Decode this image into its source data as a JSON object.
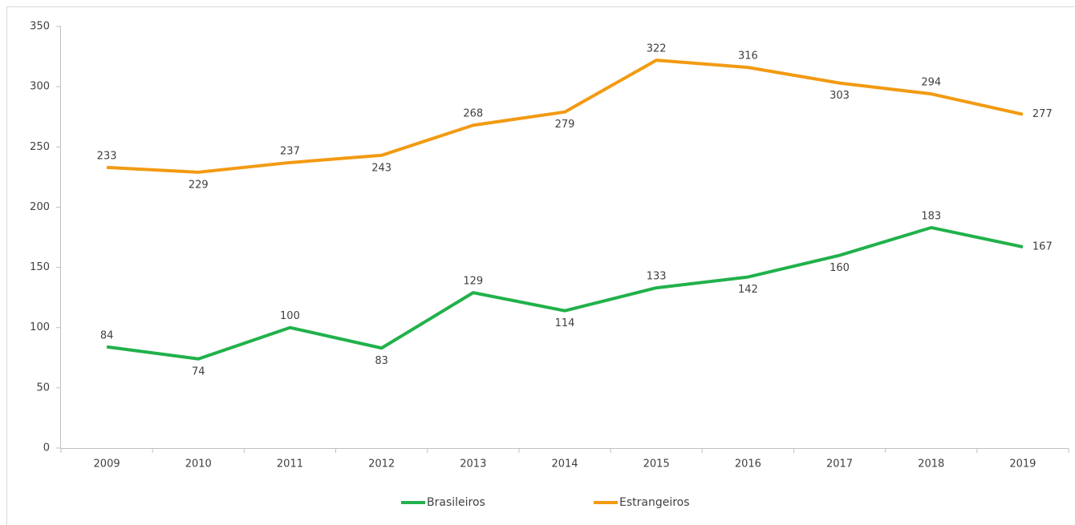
{
  "chart_data": {
    "type": "line",
    "categories": [
      "2009",
      "2010",
      "2011",
      "2012",
      "2013",
      "2014",
      "2015",
      "2016",
      "2017",
      "2018",
      "2019"
    ],
    "series": [
      {
        "name": "Brasileiros",
        "color": "#21b14b",
        "values": [
          84,
          74,
          100,
          83,
          129,
          114,
          133,
          142,
          160,
          183,
          167
        ]
      },
      {
        "name": "Estrangeiros",
        "color": "#f29a12",
        "values": [
          233,
          229,
          237,
          243,
          268,
          279,
          322,
          316,
          303,
          294,
          277
        ]
      }
    ],
    "ylim": [
      0,
      350
    ],
    "yticks": [
      0,
      50,
      100,
      150,
      200,
      250,
      300,
      350
    ],
    "grid": false,
    "legend": "bottom"
  }
}
